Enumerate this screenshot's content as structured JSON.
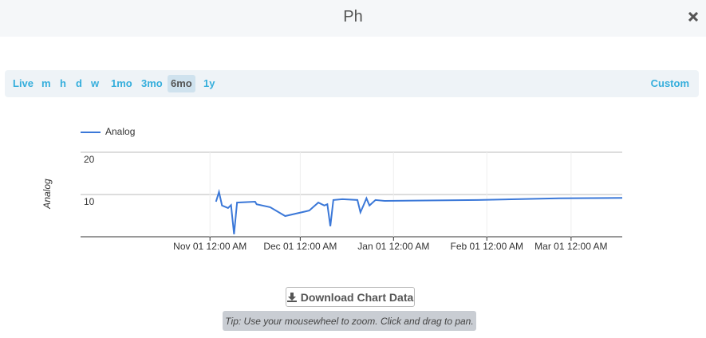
{
  "header": {
    "title": "Ph"
  },
  "ranges": [
    "Live",
    "m",
    "h",
    "d",
    "w",
    "1mo",
    "3mo",
    "6mo",
    "1y"
  ],
  "custom": "Custom",
  "chart_data": {
    "type": "line",
    "y_label": "Analog",
    "x": [
      2,
      3,
      4,
      6,
      7,
      8,
      9,
      15,
      15.5,
      20,
      25,
      33,
      36,
      38,
      39,
      40,
      41,
      44,
      49,
      50,
      51,
      52,
      53,
      55,
      58,
      89,
      116,
      137
    ],
    "series": [
      {
        "name": "Analog",
        "color": "#3b78d8",
        "values": [
          8.3,
          10.6,
          7.4,
          6.8,
          7.5,
          0.6,
          8.1,
          8.3,
          7.7,
          7.0,
          4.9,
          6.2,
          8.1,
          7.4,
          7.7,
          2.5,
          8.7,
          8.9,
          8.7,
          5.8,
          7.4,
          9.1,
          7.4,
          8.7,
          8.5,
          8.7,
          9.1,
          9.2
        ]
      }
    ],
    "xlim": [
      -43,
      137
    ],
    "xticks": [
      {
        "value": 0,
        "label": "Nov 01 12:00 AM"
      },
      {
        "value": 30,
        "label": "Dec 01 12:00 AM"
      },
      {
        "value": 61,
        "label": "Jan 01 12:00 AM"
      },
      {
        "value": 92,
        "label": "Feb 01 12:00 AM"
      },
      {
        "value": 120,
        "label": "Mar 01 12:00 AM"
      }
    ],
    "ylim": [
      0,
      20
    ],
    "yticks": [
      10,
      20
    ],
    "grid": true,
    "legend": "top-left"
  },
  "download": "Download Chart Data",
  "tip": "Tip: Use your mousewheel to zoom. Click and drag to pan."
}
